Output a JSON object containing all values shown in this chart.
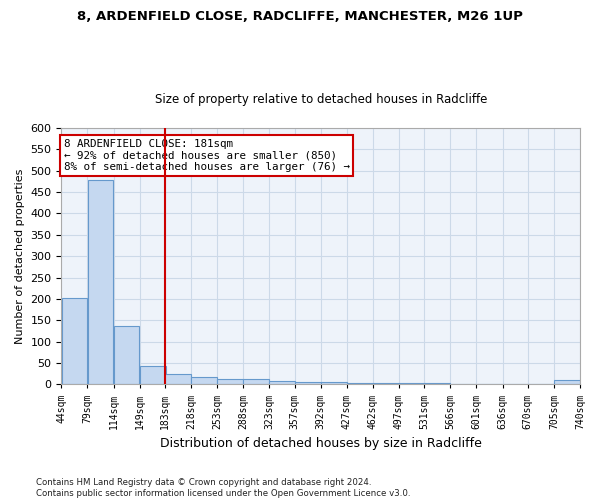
{
  "title1": "8, ARDENFIELD CLOSE, RADCLIFFE, MANCHESTER, M26 1UP",
  "title2": "Size of property relative to detached houses in Radcliffe",
  "xlabel": "Distribution of detached houses by size in Radcliffe",
  "ylabel": "Number of detached properties",
  "bar_left_edges": [
    44,
    79,
    114,
    149,
    183,
    218,
    253,
    288,
    323,
    357,
    392,
    427,
    462,
    497,
    531,
    566,
    601,
    636,
    670,
    705
  ],
  "bar_heights": [
    203,
    478,
    136,
    44,
    25,
    18,
    13,
    12,
    8,
    6,
    5,
    4,
    3,
    3,
    3,
    2,
    2,
    1,
    1,
    10
  ],
  "bin_width": 35,
  "bar_color": "#c5d8f0",
  "bar_edge_color": "#6699cc",
  "vline_x": 183,
  "vline_color": "#cc0000",
  "annotation_text": "8 ARDENFIELD CLOSE: 181sqm\n← 92% of detached houses are smaller (850)\n8% of semi-detached houses are larger (76) →",
  "annotation_box_color": "#ffffff",
  "annotation_box_edge": "#cc0000",
  "xtick_labels": [
    "44sqm",
    "79sqm",
    "114sqm",
    "149sqm",
    "183sqm",
    "218sqm",
    "253sqm",
    "288sqm",
    "323sqm",
    "357sqm",
    "392sqm",
    "427sqm",
    "462sqm",
    "497sqm",
    "531sqm",
    "566sqm",
    "601sqm",
    "636sqm",
    "670sqm",
    "705sqm",
    "740sqm"
  ],
  "ylim": [
    0,
    600
  ],
  "yticks": [
    0,
    50,
    100,
    150,
    200,
    250,
    300,
    350,
    400,
    450,
    500,
    550,
    600
  ],
  "footnote": "Contains HM Land Registry data © Crown copyright and database right 2024.\nContains public sector information licensed under the Open Government Licence v3.0.",
  "background_color": "#ffffff",
  "grid_color": "#ccd9e8",
  "plot_bg_color": "#eef3fa"
}
